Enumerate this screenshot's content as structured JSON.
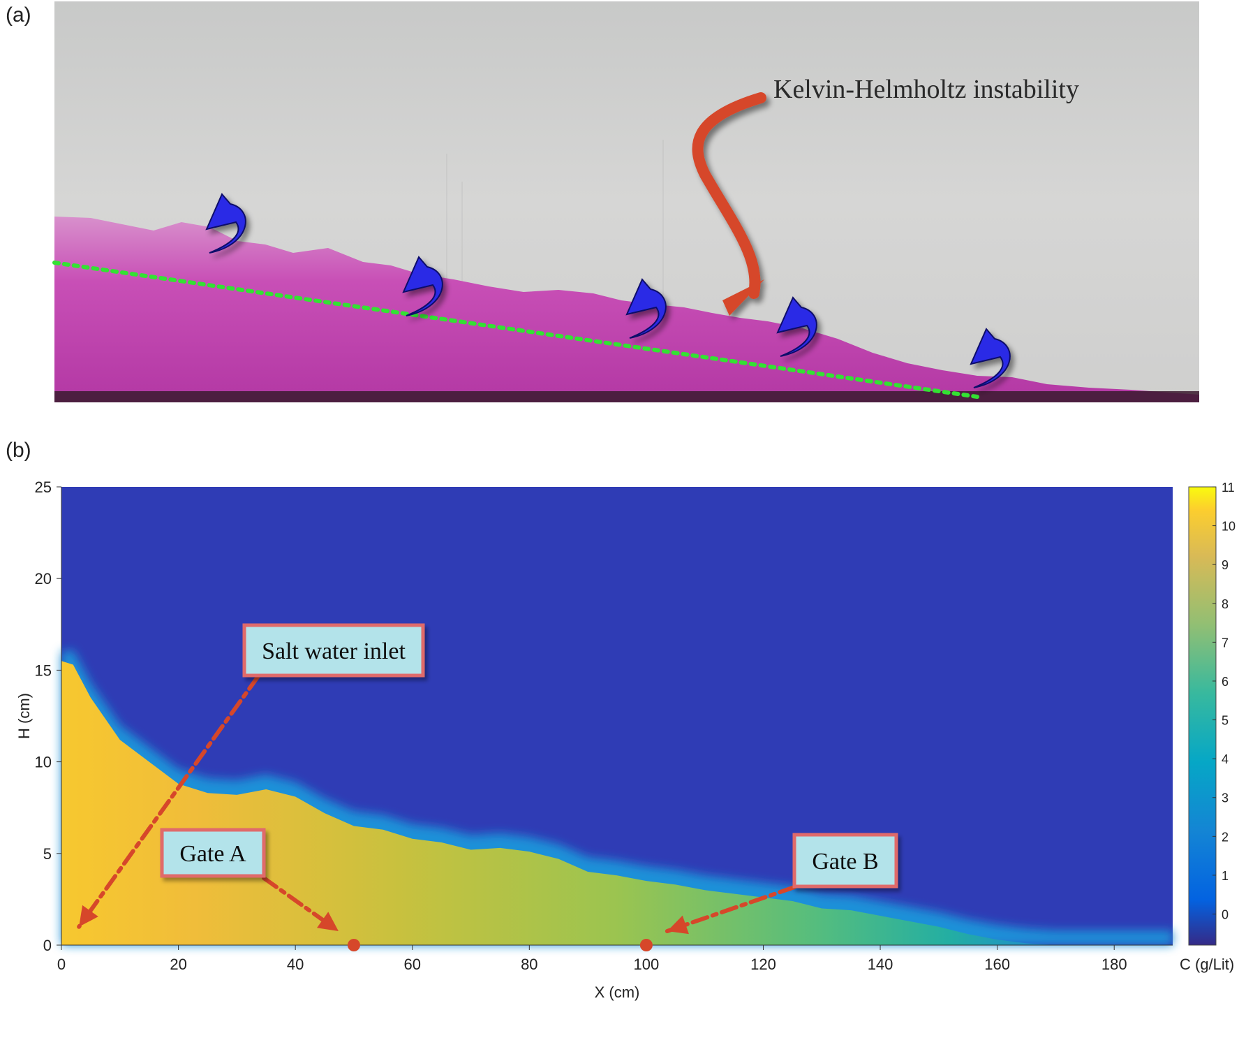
{
  "panel_a": {
    "label": "(a)",
    "annotation": "Kelvin-Helmholtz instability",
    "colors": {
      "background": "#cfd0cf",
      "gravity_current": "#c63fb4",
      "interface_line": "#33e233",
      "kh_arrow": "#d6472a",
      "vortex_arrows": "#2828e6"
    }
  },
  "panel_b": {
    "label": "(b)",
    "chart_data": {
      "type": "heatmap",
      "xlabel": "X (cm)",
      "ylabel": "H (cm)",
      "xlim": [
        0,
        190
      ],
      "ylim": [
        0,
        25
      ],
      "x_ticks": [
        0,
        20,
        40,
        60,
        80,
        100,
        120,
        140,
        160,
        180
      ],
      "y_ticks": [
        0,
        5,
        10,
        15,
        20,
        25
      ],
      "colorbar": {
        "label": "C (g/Lit)",
        "range": [
          -0.8,
          11
        ],
        "ticks": [
          0,
          1,
          2,
          3,
          4,
          5,
          6,
          7,
          8,
          9,
          10,
          11
        ],
        "colormap": "parula"
      },
      "interface_profile": {
        "x": [
          0,
          2,
          5,
          10,
          15,
          20,
          25,
          30,
          35,
          40,
          45,
          50,
          55,
          60,
          65,
          70,
          75,
          80,
          85,
          90,
          95,
          100,
          105,
          110,
          115,
          120,
          125,
          130,
          135,
          140,
          145,
          150,
          155,
          160,
          165,
          170,
          180,
          190
        ],
        "h": [
          15.5,
          15.3,
          13.5,
          11.2,
          10.0,
          8.8,
          8.3,
          8.2,
          8.5,
          8.1,
          7.2,
          6.5,
          6.3,
          5.8,
          5.6,
          5.2,
          5.3,
          5.1,
          4.7,
          4.0,
          3.8,
          3.5,
          3.3,
          3.0,
          2.8,
          2.6,
          2.4,
          2.0,
          1.9,
          1.6,
          1.3,
          1.0,
          0.6,
          0.3,
          0.1,
          0,
          0,
          0
        ]
      },
      "concentration_at_bed": {
        "x": [
          0,
          20,
          40,
          60,
          80,
          100,
          120,
          140,
          160
        ],
        "c": [
          10.5,
          9.5,
          8.5,
          7.8,
          7.2,
          6.8,
          6.0,
          4.5,
          2.5
        ]
      },
      "annotations": [
        {
          "text": "Salt water inlet",
          "target_x": 3,
          "target_h": 1
        },
        {
          "text": "Gate A",
          "marker_x": 50,
          "marker_h": 0
        },
        {
          "text": "Gate B",
          "marker_x": 100,
          "marker_h": 0
        }
      ]
    }
  }
}
